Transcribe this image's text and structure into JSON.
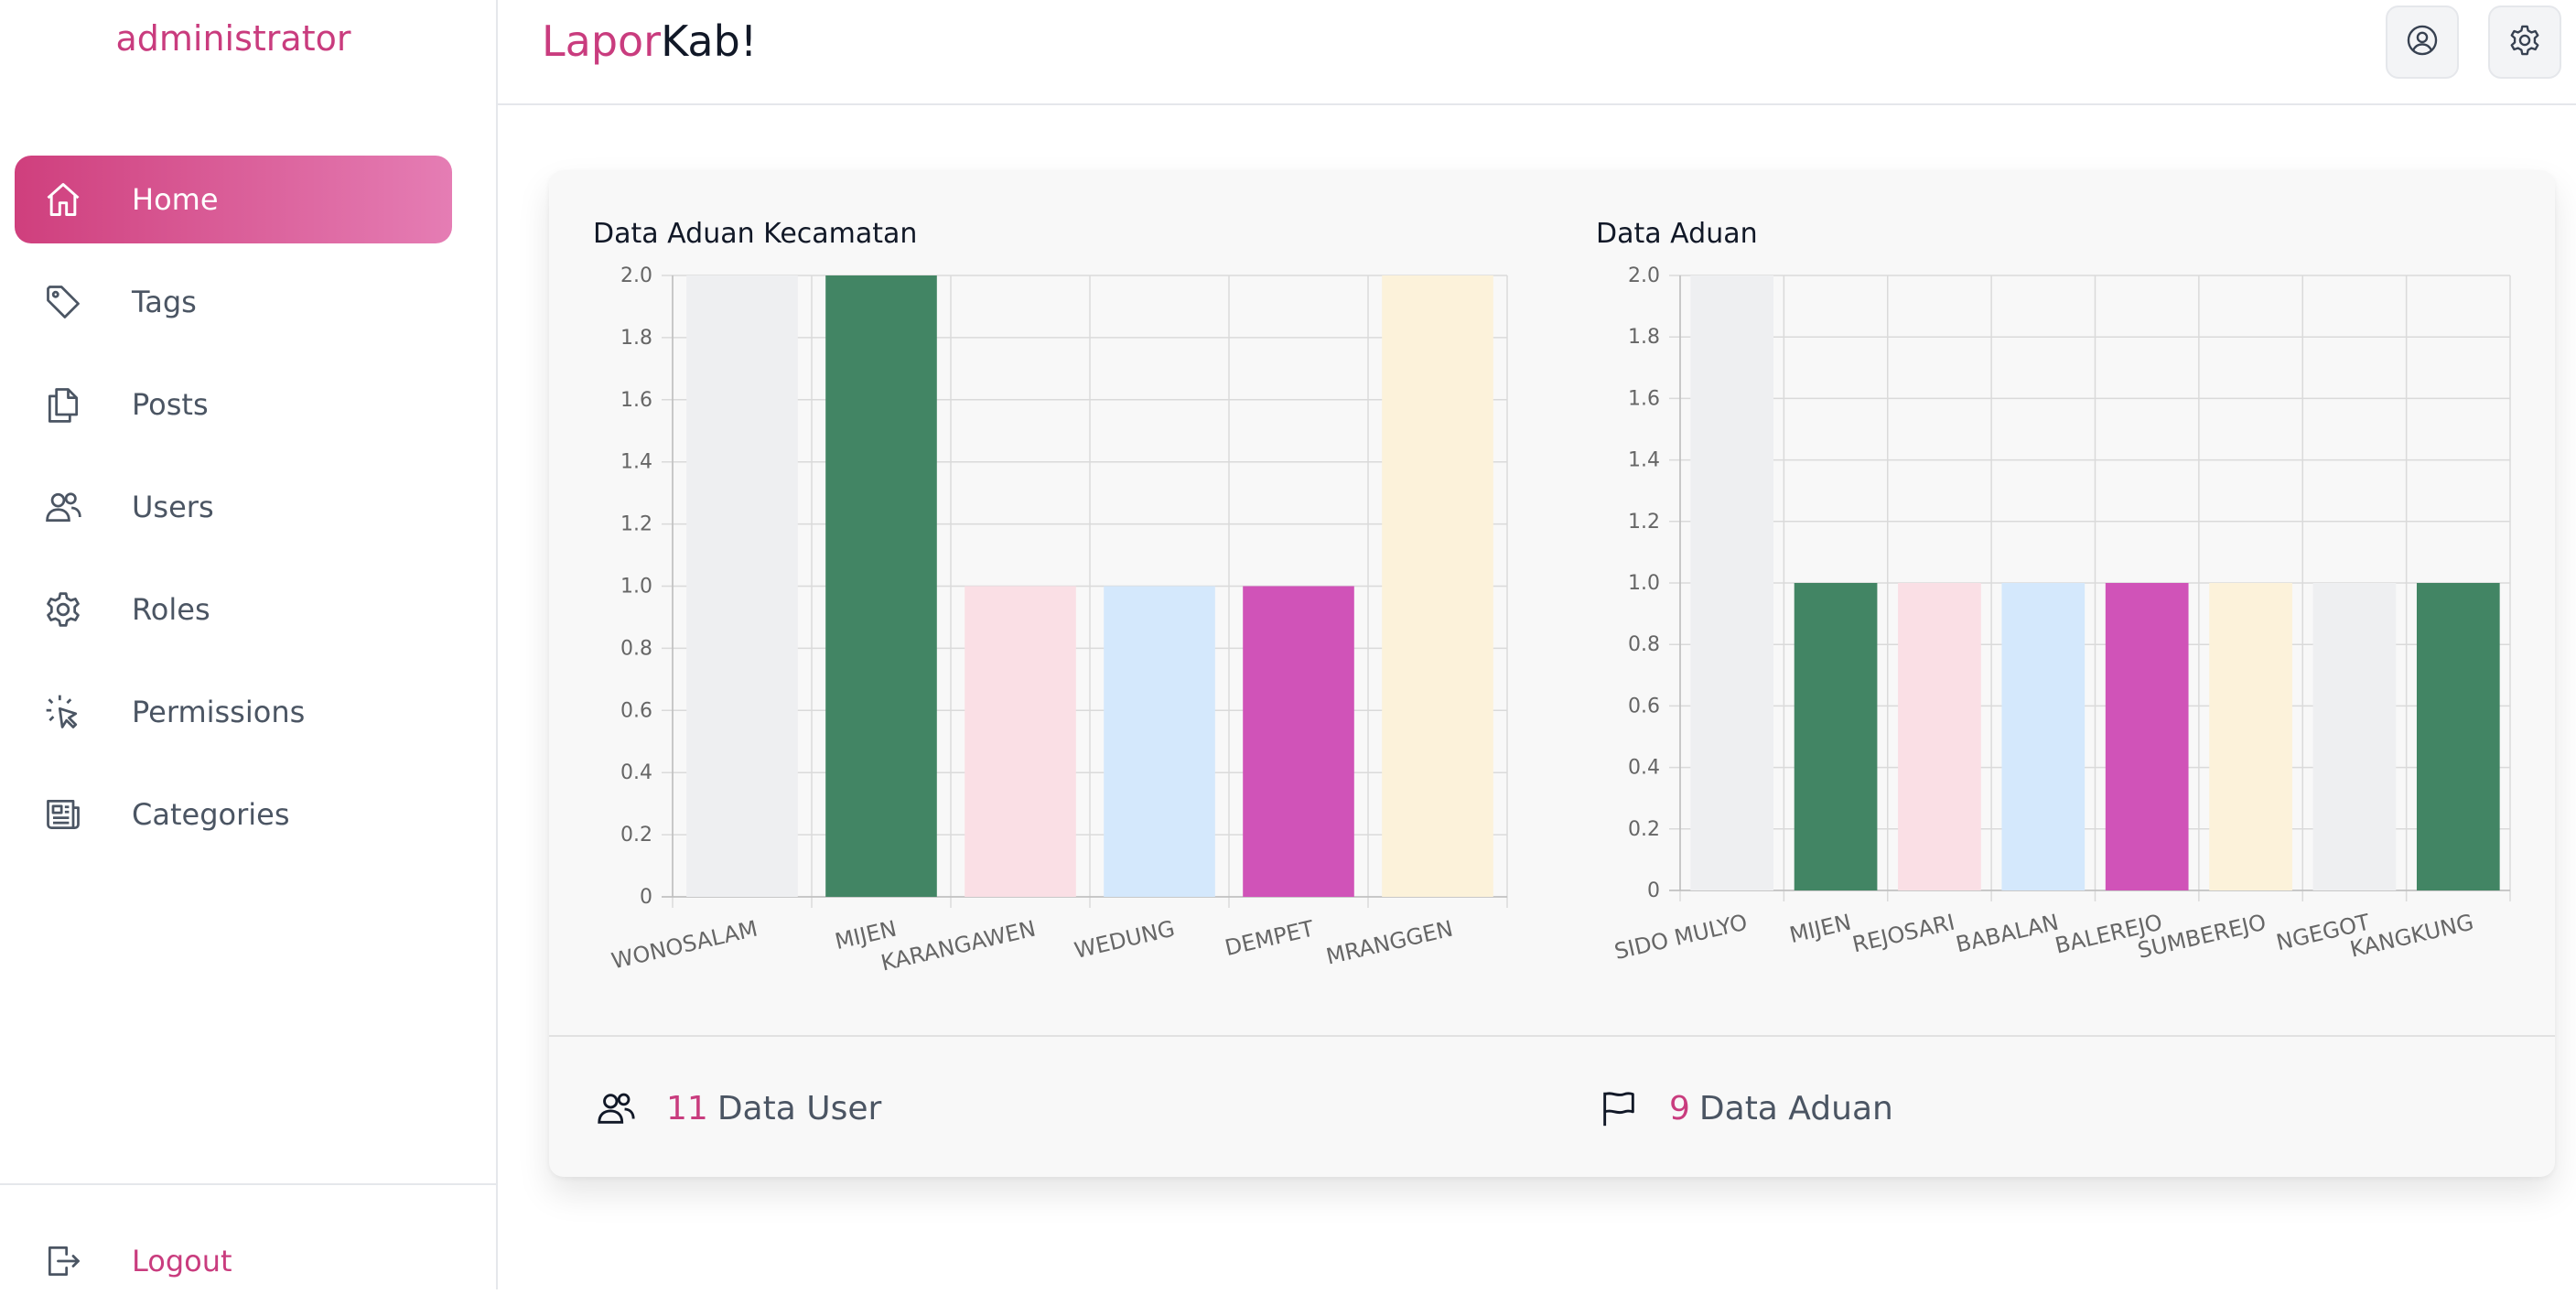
{
  "sidebar": {
    "user": "administrator",
    "items": [
      {
        "label": "Home",
        "icon": "home-icon",
        "active": true
      },
      {
        "label": "Tags",
        "icon": "tag-icon"
      },
      {
        "label": "Posts",
        "icon": "documents-icon"
      },
      {
        "label": "Users",
        "icon": "users-icon"
      },
      {
        "label": "Roles",
        "icon": "gear-icon"
      },
      {
        "label": "Permissions",
        "icon": "cursor-click-icon"
      },
      {
        "label": "Categories",
        "icon": "newspaper-icon"
      }
    ],
    "logout": "Logout"
  },
  "header": {
    "brand_part1": "Lapor",
    "brand_part2": "Kab!",
    "buttons": [
      "user-circle-icon",
      "gear-icon"
    ]
  },
  "colors": {
    "accent": "#c93c7e",
    "bars": [
      "#eeeff1",
      "#428564",
      "#fadfe5",
      "#d4e8fc",
      "#d053b8",
      "#fcf2da"
    ]
  },
  "chart_data": [
    {
      "type": "bar",
      "title": "Data Aduan Kecamatan",
      "categories": [
        "WONOSALAM",
        "MIJEN",
        "KARANGAWEN",
        "WEDUNG",
        "DEMPET",
        "MRANGGEN"
      ],
      "values": [
        2,
        2,
        1,
        1,
        1,
        2
      ],
      "ylim": [
        0,
        2
      ],
      "yticks": [
        "0",
        "0.2",
        "0.4",
        "0.6",
        "0.8",
        "1.0",
        "1.2",
        "1.4",
        "1.6",
        "1.8",
        "2.0"
      ],
      "grid": true
    },
    {
      "type": "bar",
      "title": "Data Aduan",
      "categories": [
        "SIDO MULYO",
        "MIJEN",
        "REJOSARI",
        "BABALAN",
        "BALEREJO",
        "SUMBEREJO",
        "NGEGOT",
        "KANGKUNG"
      ],
      "values": [
        2,
        1,
        1,
        1,
        1,
        1,
        1,
        1
      ],
      "ylim": [
        0,
        2
      ],
      "yticks": [
        "0",
        "0.2",
        "0.4",
        "0.6",
        "0.8",
        "1.0",
        "1.2",
        "1.4",
        "1.6",
        "1.8",
        "2.0"
      ],
      "grid": true
    }
  ],
  "stats": [
    {
      "icon": "users-icon",
      "value": "11",
      "label": "Data User"
    },
    {
      "icon": "flag-icon",
      "value": "9",
      "label": "Data Aduan"
    }
  ]
}
